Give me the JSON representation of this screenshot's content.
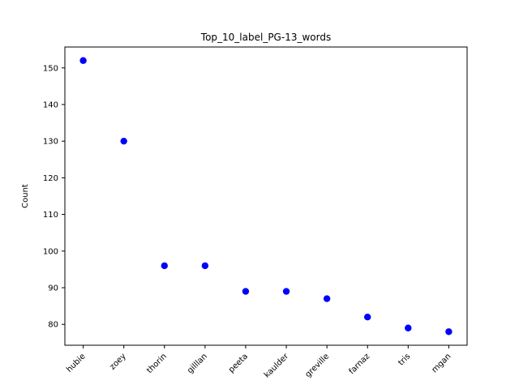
{
  "chart_data": {
    "type": "scatter",
    "title": "Top_10_label_PG-13_words",
    "xlabel": "",
    "ylabel": "Count",
    "categories": [
      "hubie",
      "zoey",
      "thorin",
      "gilllan",
      "peeta",
      "kaulder",
      "greville",
      "farnaz",
      "tris",
      "mgan"
    ],
    "values": [
      152,
      130,
      96,
      96,
      89,
      89,
      87,
      82,
      79,
      78
    ],
    "ylim": [
      74.3,
      155.7
    ],
    "yticks": [
      80,
      90,
      100,
      110,
      120,
      130,
      140,
      150
    ],
    "ytick_labels": [
      "80",
      "90",
      "100",
      "110",
      "120",
      "130",
      "140",
      "150"
    ],
    "grid": false,
    "marker_color": "#0000ff"
  }
}
